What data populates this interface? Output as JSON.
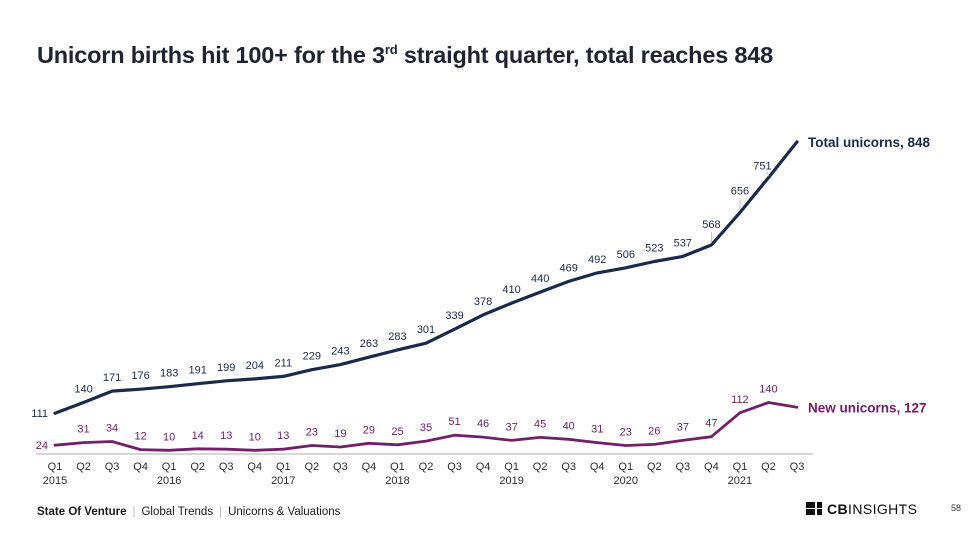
{
  "title": {
    "prefix": "Unicorn births hit 100+ for the 3",
    "sup": "rd",
    "suffix": " straight quarter, total reaches 848"
  },
  "chart_data": {
    "type": "line",
    "title": "Unicorn births hit 100+ for the 3rd straight quarter, total reaches 848",
    "x_quarters": [
      "Q1",
      "Q2",
      "Q3",
      "Q4",
      "Q1",
      "Q2",
      "Q3",
      "Q4",
      "Q1",
      "Q2",
      "Q3",
      "Q4",
      "Q1",
      "Q2",
      "Q3",
      "Q4",
      "Q1",
      "Q2",
      "Q3",
      "Q4",
      "Q1",
      "Q2",
      "Q3",
      "Q4",
      "Q1",
      "Q2",
      "Q3"
    ],
    "x_years": [
      "2015",
      "2016",
      "2017",
      "2018",
      "2019",
      "2020",
      "2021"
    ],
    "x_year_at_every": 4,
    "series": [
      {
        "name": "Total unicorns",
        "end_label": "Total unicorns, 848",
        "color": "#1b2a4a",
        "values": [
          111,
          140,
          171,
          176,
          183,
          191,
          199,
          204,
          211,
          229,
          243,
          263,
          283,
          301,
          339,
          378,
          410,
          440,
          469,
          492,
          506,
          523,
          537,
          568,
          656,
          751,
          848
        ]
      },
      {
        "name": "New unicorns",
        "end_label": "New unicorns, 127",
        "color": "#72206a",
        "values": [
          24,
          31,
          34,
          12,
          10,
          14,
          13,
          10,
          13,
          23,
          19,
          29,
          25,
          35,
          51,
          46,
          37,
          45,
          40,
          31,
          23,
          26,
          37,
          47,
          112,
          140,
          127
        ]
      }
    ],
    "ylim": [
      0,
      900
    ],
    "grid": false,
    "legend_position": "right-of-line-end",
    "axis_color": "#adadad",
    "tick_color": "#2d2d2d"
  },
  "footer": {
    "items": [
      "State Of Venture",
      "Global Trends",
      "Unicorns & Valuations"
    ],
    "separator": "|"
  },
  "logo": {
    "bold": "CB",
    "regular": "INSIGHTS"
  },
  "page_number": "58"
}
